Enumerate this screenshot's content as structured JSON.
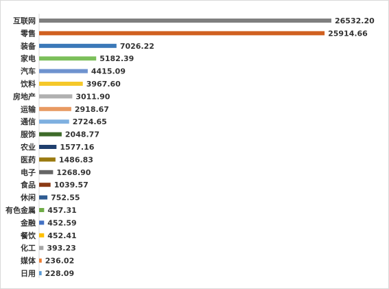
{
  "chart_data": {
    "type": "bar",
    "orientation": "horizontal",
    "categories": [
      "互联网",
      "零售",
      "装备",
      "家电",
      "汽车",
      "饮料",
      "房地产",
      "运输",
      "通信",
      "服饰",
      "农业",
      "医药",
      "电子",
      "食品",
      "休闲",
      "有色金属",
      "金融",
      "餐饮",
      "化工",
      "媒体",
      "日用"
    ],
    "values": [
      26532.2,
      25914.66,
      7026.22,
      5182.39,
      4415.09,
      3967.6,
      3011.9,
      2918.67,
      2724.65,
      2048.77,
      1577.16,
      1486.83,
      1268.9,
      1039.57,
      752.55,
      457.31,
      452.59,
      452.41,
      393.23,
      236.02,
      228.09
    ],
    "value_labels": [
      "26532.20",
      "25914.66",
      "7026.22",
      "5182.39",
      "4415.09",
      "3967.60",
      "3011.90",
      "2918.67",
      "2724.65",
      "2048.77",
      "1577.16",
      "1486.83",
      "1268.90",
      "1039.57",
      "752.55",
      "457.31",
      "452.59",
      "452.41",
      "393.23",
      "236.02",
      "228.09"
    ],
    "colors": [
      "#7f7f7f",
      "#d06020",
      "#3a78b8",
      "#7bbf5a",
      "#6f93cf",
      "#f5c82a",
      "#b0b0b0",
      "#e89a62",
      "#7fb0e0",
      "#3e6b2a",
      "#1f3f6e",
      "#9a7a10",
      "#666666",
      "#8b3a14",
      "#2f5c92",
      "#70ad47",
      "#4472c4",
      "#ffc000",
      "#a5a5a5",
      "#ed7d31",
      "#5b9bd5"
    ],
    "xlim": [
      0,
      26532.2
    ],
    "grid": false,
    "legend": "none",
    "title": "",
    "xlabel": "",
    "ylabel": ""
  }
}
